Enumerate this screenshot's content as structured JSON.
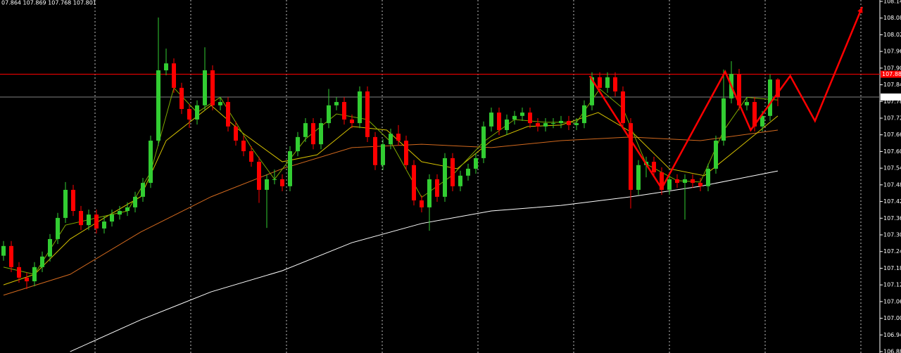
{
  "chart_data": {
    "type": "candlestick",
    "header": "07.864 107.869 107.768 107.801",
    "up_color": "#32cd32",
    "down_color": "#ff0000",
    "ylim": [
      106.88,
      108.15
    ],
    "yticks": [
      106.885,
      106.945,
      107.005,
      107.065,
      107.125,
      107.185,
      107.245,
      107.305,
      107.365,
      107.425,
      107.485,
      107.545,
      107.605,
      107.665,
      107.725,
      107.785,
      107.845,
      107.905,
      107.965,
      108.025,
      108.085,
      108.145
    ],
    "open": [
      107.23,
      107.265,
      107.189,
      107.151,
      107.138,
      107.189,
      107.227,
      107.29,
      107.366,
      107.467,
      107.391,
      107.34,
      107.378,
      107.328,
      107.353,
      107.378,
      107.391,
      107.404,
      107.442,
      107.492,
      107.644,
      107.897,
      107.922,
      107.834,
      107.758,
      107.72,
      107.771,
      107.897,
      107.771,
      107.783,
      107.695,
      107.644,
      107.606,
      107.568,
      107.467,
      107.505,
      107.505,
      107.48,
      107.606,
      107.657,
      107.707,
      107.631,
      107.707,
      107.771,
      107.783,
      107.72,
      107.707,
      107.821,
      107.657,
      107.556,
      107.631,
      107.669,
      107.644,
      107.556,
      107.429,
      107.404,
      107.505,
      107.442,
      107.581,
      107.48,
      107.518,
      107.543,
      107.581,
      107.695,
      107.745,
      107.682,
      107.72,
      107.733,
      107.745,
      107.707,
      107.695,
      107.707,
      107.707,
      107.715,
      107.7,
      107.707,
      107.771,
      107.872,
      107.834,
      107.872,
      107.821,
      107.707,
      107.467,
      107.556,
      107.568,
      107.53,
      107.467,
      107.505,
      107.492,
      107.505,
      107.492,
      107.48,
      107.543,
      107.644,
      107.796,
      107.884,
      107.771,
      107.783,
      107.695,
      107.733,
      107.864
    ],
    "high": [
      107.283,
      107.283,
      107.207,
      107.169,
      107.207,
      107.245,
      107.308,
      107.384,
      107.495,
      107.485,
      107.409,
      107.396,
      107.396,
      107.371,
      107.396,
      107.409,
      107.422,
      107.46,
      107.51,
      107.662,
      108.087,
      107.975,
      107.94,
      107.852,
      107.776,
      107.789,
      107.98,
      107.915,
      107.801,
      107.801,
      107.713,
      107.662,
      107.624,
      107.586,
      107.523,
      107.54,
      107.523,
      107.624,
      107.675,
      107.725,
      107.725,
      107.725,
      107.83,
      107.801,
      107.801,
      107.738,
      107.839,
      107.839,
      107.675,
      107.649,
      107.687,
      107.7,
      107.662,
      107.574,
      107.447,
      107.523,
      107.523,
      107.599,
      107.599,
      107.536,
      107.561,
      107.599,
      107.713,
      107.763,
      107.763,
      107.738,
      107.751,
      107.763,
      107.763,
      107.725,
      107.725,
      107.725,
      107.733,
      107.733,
      107.725,
      107.789,
      107.89,
      107.89,
      107.89,
      107.89,
      107.839,
      107.725,
      107.574,
      107.586,
      107.586,
      107.548,
      107.523,
      107.523,
      107.523,
      107.523,
      107.51,
      107.561,
      107.662,
      107.9,
      107.93,
      107.902,
      107.801,
      107.801,
      107.751,
      107.882,
      107.869
    ],
    "low": [
      107.212,
      107.171,
      107.133,
      107.11,
      107.12,
      107.171,
      107.209,
      107.272,
      107.348,
      107.373,
      107.322,
      107.322,
      107.31,
      107.31,
      107.335,
      107.36,
      107.373,
      107.386,
      107.424,
      107.474,
      107.626,
      107.879,
      107.816,
      107.74,
      107.69,
      107.702,
      107.753,
      107.753,
      107.753,
      107.677,
      107.626,
      107.588,
      107.55,
      107.42,
      107.33,
      107.487,
      107.462,
      107.462,
      107.588,
      107.639,
      107.613,
      107.613,
      107.689,
      107.753,
      107.702,
      107.689,
      107.689,
      107.639,
      107.538,
      107.538,
      107.613,
      107.626,
      107.538,
      107.411,
      107.386,
      107.32,
      107.424,
      107.424,
      107.462,
      107.462,
      107.5,
      107.525,
      107.563,
      107.677,
      107.664,
      107.664,
      107.702,
      107.715,
      107.689,
      107.677,
      107.677,
      107.689,
      107.689,
      107.682,
      107.682,
      107.689,
      107.753,
      107.816,
      107.816,
      107.803,
      107.689,
      107.4,
      107.449,
      107.512,
      107.512,
      107.449,
      107.449,
      107.474,
      107.36,
      107.474,
      107.462,
      107.462,
      107.525,
      107.626,
      107.778,
      107.753,
      107.753,
      107.677,
      107.677,
      107.715,
      107.768
    ],
    "close": [
      107.265,
      107.189,
      107.151,
      107.138,
      107.189,
      107.227,
      107.29,
      107.366,
      107.467,
      107.391,
      107.34,
      107.378,
      107.328,
      107.353,
      107.378,
      107.391,
      107.404,
      107.442,
      107.492,
      107.644,
      107.897,
      107.922,
      107.834,
      107.758,
      107.72,
      107.771,
      107.897,
      107.771,
      107.783,
      107.695,
      107.644,
      107.606,
      107.568,
      107.467,
      107.505,
      107.505,
      107.48,
      107.606,
      107.657,
      107.707,
      107.631,
      107.707,
      107.771,
      107.783,
      107.72,
      107.707,
      107.821,
      107.657,
      107.556,
      107.631,
      107.669,
      107.644,
      107.556,
      107.429,
      107.404,
      107.505,
      107.442,
      107.581,
      107.48,
      107.518,
      107.543,
      107.581,
      107.695,
      107.745,
      107.682,
      107.72,
      107.733,
      107.745,
      107.707,
      107.695,
      107.707,
      107.707,
      107.715,
      107.7,
      107.707,
      107.771,
      107.872,
      107.834,
      107.872,
      107.821,
      107.707,
      107.467,
      107.556,
      107.568,
      107.53,
      107.467,
      107.505,
      107.492,
      107.505,
      107.492,
      107.48,
      107.543,
      107.644,
      107.796,
      107.884,
      107.771,
      107.783,
      107.695,
      107.733,
      107.864,
      107.801
    ],
    "overlays": [
      {
        "color": "#ffffff",
        "x": [
          8.6,
          17.7,
          26.8,
          36,
          45,
          54,
          63,
          72,
          81,
          90,
          100
        ],
        "values": [
          106.885,
          106.999,
          107.1,
          107.176,
          107.277,
          107.346,
          107.391,
          107.411,
          107.442,
          107.48,
          107.535
        ]
      },
      {
        "color": "#d2691e",
        "x": [
          0,
          8.6,
          17.7,
          26.8,
          36,
          45,
          54,
          63,
          72,
          81,
          90,
          100
        ],
        "values": [
          107.088,
          107.163,
          107.315,
          107.442,
          107.543,
          107.619,
          107.631,
          107.619,
          107.644,
          107.657,
          107.644,
          107.682
        ]
      },
      {
        "color": "#d4c000",
        "x": [
          0,
          4,
          8.6,
          13,
          17.7,
          21,
          26.8,
          31,
          36,
          40.5,
          45,
          49.5,
          54,
          58.6,
          63,
          67.7,
          72,
          76.8,
          81.4,
          86,
          90.5,
          95,
          100
        ],
        "values": [
          107.125,
          107.163,
          107.29,
          107.366,
          107.442,
          107.644,
          107.771,
          107.669,
          107.568,
          107.593,
          107.695,
          107.682,
          107.568,
          107.543,
          107.644,
          107.695,
          107.7,
          107.745,
          107.669,
          107.543,
          107.518,
          107.619,
          107.733
        ]
      },
      {
        "color": "#7fa800",
        "x": [
          0,
          4,
          8,
          12,
          16,
          19,
          22,
          25,
          28,
          32,
          35,
          39,
          43,
          47,
          50,
          54,
          58,
          62,
          66,
          70,
          74,
          77,
          80,
          83,
          87,
          90,
          93,
          96,
          100
        ],
        "values": [
          107.189,
          107.163,
          107.34,
          107.366,
          107.391,
          107.53,
          107.834,
          107.745,
          107.8,
          107.62,
          107.505,
          107.65,
          107.74,
          107.72,
          107.64,
          107.44,
          107.52,
          107.64,
          107.72,
          107.71,
          107.71,
          107.83,
          107.76,
          107.56,
          107.5,
          107.495,
          107.68,
          107.8,
          107.79
        ]
      }
    ],
    "hlines": [
      {
        "value": 107.883,
        "color": "#ff0000"
      },
      {
        "value": 107.801,
        "color": "#808080"
      }
    ],
    "annotation": {
      "color": "#ff0000",
      "x": [
        75.7,
        85,
        93.2,
        96.5,
        101.6,
        104.8,
        110.9
      ],
      "values": [
        107.877,
        107.472,
        107.892,
        107.682,
        107.877,
        107.715,
        108.125
      ]
    }
  }
}
